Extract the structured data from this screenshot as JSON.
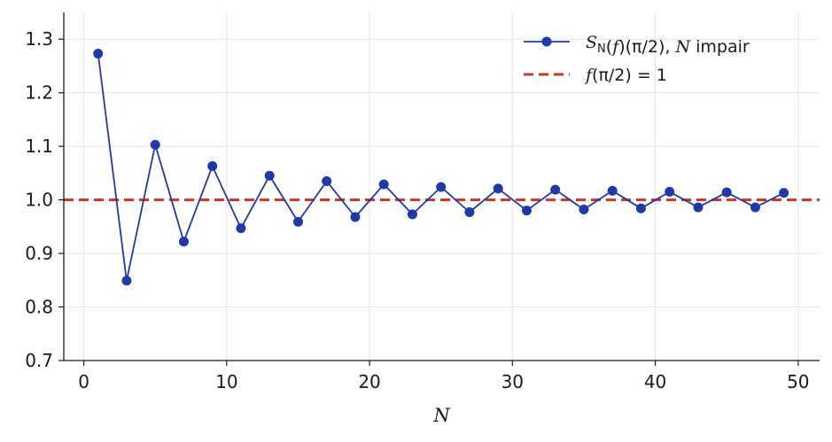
{
  "chart_data": {
    "type": "line",
    "title": "",
    "xlabel": "N",
    "ylabel": "",
    "xlim": [
      -1.4,
      51.5
    ],
    "ylim": [
      0.7,
      1.35
    ],
    "xticks": [
      0,
      10,
      20,
      30,
      40,
      50
    ],
    "yticks": [
      0.7,
      0.8,
      0.9,
      1.0,
      1.1,
      1.2,
      1.3
    ],
    "xtick_labels": [
      "0",
      "10",
      "20",
      "30",
      "40",
      "50"
    ],
    "ytick_labels": [
      "0.7",
      "0.8",
      "0.9",
      "1.0",
      "1.1",
      "1.2",
      "1.3"
    ],
    "grid": true,
    "legend_position": "top-right",
    "series": [
      {
        "name": "S_N(f)(π/2), N impair",
        "color": "#2039a8",
        "style": "line-marker",
        "x": [
          1,
          3,
          5,
          7,
          9,
          11,
          13,
          15,
          17,
          19,
          21,
          23,
          25,
          27,
          29,
          31,
          33,
          35,
          37,
          39,
          41,
          43,
          45,
          47,
          49
        ],
        "y": [
          1.273,
          0.849,
          1.103,
          0.922,
          1.063,
          0.947,
          1.045,
          0.959,
          1.035,
          0.968,
          1.029,
          0.973,
          1.024,
          0.977,
          1.021,
          0.98,
          1.019,
          0.982,
          1.017,
          0.984,
          1.015,
          0.986,
          1.014,
          0.986,
          1.013
        ]
      },
      {
        "name": "f(π/2) = 1",
        "color": "#c0392b",
        "style": "dashed",
        "y_constant": 1.0
      }
    ],
    "legend": [
      {
        "parts": [
          [
            "S",
            "it"
          ],
          [
            "N",
            "sub"
          ],
          [
            "(",
            ""
          ],
          [
            "f",
            "it"
          ],
          [
            ")(π/2), ",
            ""
          ],
          [
            "N",
            "it"
          ],
          [
            " impair",
            ""
          ]
        ]
      },
      {
        "parts": [
          [
            "f",
            "it"
          ],
          [
            "(π/2) = 1",
            ""
          ]
        ]
      }
    ]
  }
}
